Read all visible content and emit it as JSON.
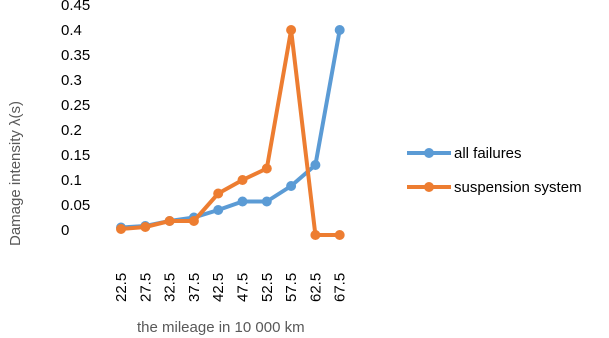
{
  "chart_data": {
    "type": "line",
    "xlabel": "the mileage  in  10 000  km",
    "ylabel": "Damage intensity λ(s)",
    "categories": [
      "22.5",
      "27.5",
      "32.5",
      "37.5",
      "42.5",
      "47.5",
      "52.5",
      "57.5",
      "62.5",
      "67.5"
    ],
    "yticks": [
      "0",
      "0.05",
      "0.1",
      "0.15",
      "0.2",
      "0.25",
      "0.3",
      "0.35",
      "0.4",
      "0.45"
    ],
    "ylim": [
      0,
      0.45
    ],
    "grid": false,
    "legend_position": "right",
    "series": [
      {
        "name": "all failures",
        "color": "#5B9BD5",
        "values": [
          0.005,
          0.008,
          0.018,
          0.025,
          0.04,
          0.057,
          0.057,
          0.088,
          0.13,
          0.4
        ]
      },
      {
        "name": "suspension system",
        "color": "#ED7D31",
        "values": [
          0.002,
          0.006,
          0.018,
          0.018,
          0.073,
          0.1,
          0.123,
          0.4,
          -0.01,
          -0.01
        ]
      }
    ]
  }
}
